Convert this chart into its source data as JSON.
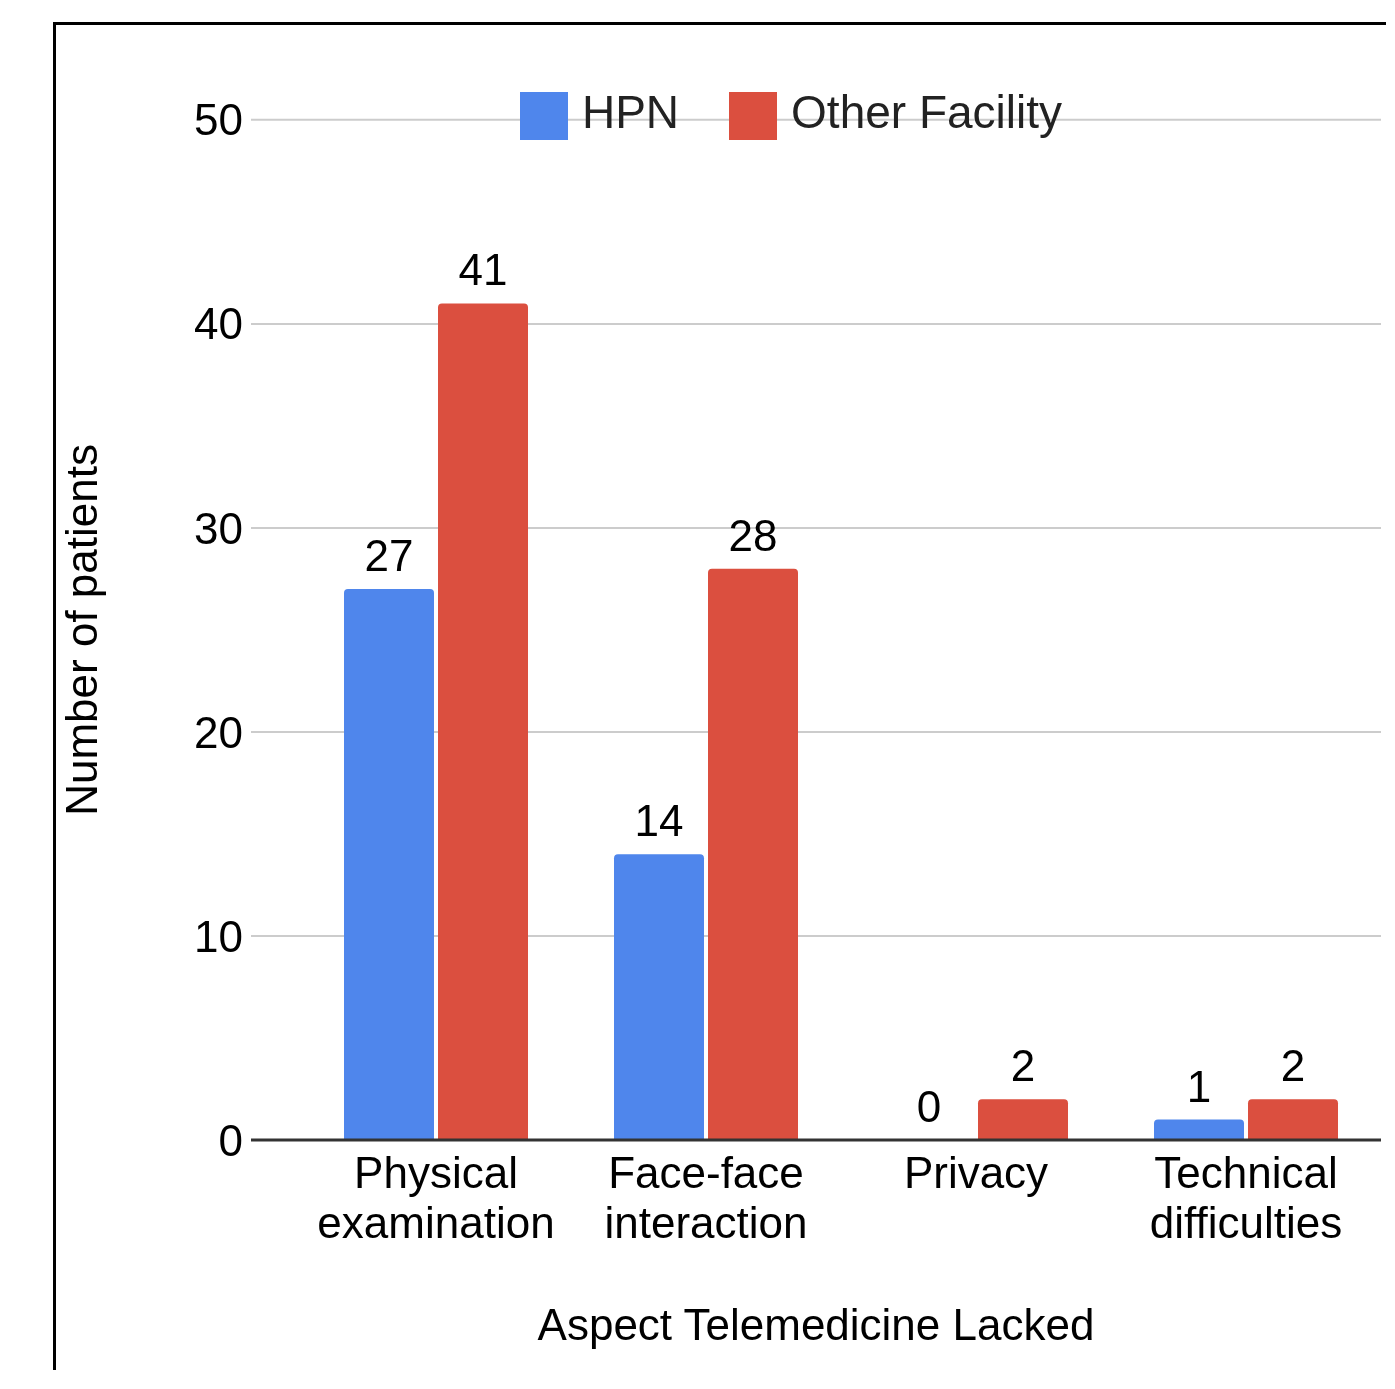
{
  "chart_data": {
    "type": "bar",
    "xlabel": "Aspect Telemedicine Lacked",
    "ylabel": "Number of patients",
    "categories": [
      "Physical examination",
      "Face-face interaction",
      "Privacy",
      "Technical difficulties"
    ],
    "series": [
      {
        "name": "HPN",
        "color": "#4f86ec",
        "values": [
          27,
          14,
          0,
          1
        ]
      },
      {
        "name": "Other Facility",
        "color": "#db4f3f",
        "values": [
          41,
          28,
          2,
          2
        ]
      }
    ],
    "ylim": [
      0,
      50
    ],
    "yticks": [
      0,
      10,
      20,
      30,
      40,
      50
    ],
    "grid": "y",
    "legend": "top",
    "data_labels": true
  }
}
